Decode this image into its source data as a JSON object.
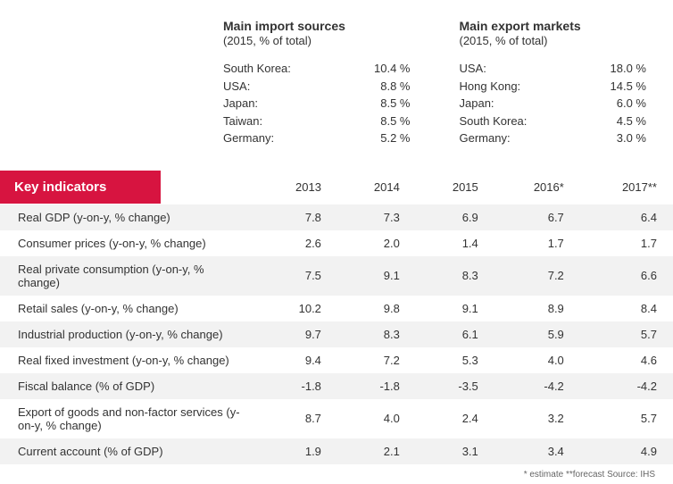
{
  "imports": {
    "title": "Main import sources",
    "subtitle": "(2015, % of total)",
    "rows": [
      {
        "label": "South Korea:",
        "value": "10.4 %"
      },
      {
        "label": "USA:",
        "value": "8.8 %"
      },
      {
        "label": "Japan:",
        "value": "8.5 %"
      },
      {
        "label": "Taiwan:",
        "value": "8.5 %"
      },
      {
        "label": "Germany:",
        "value": "5.2 %"
      }
    ]
  },
  "exports": {
    "title": "Main export markets",
    "subtitle": "(2015, % of total)",
    "rows": [
      {
        "label": "USA:",
        "value": "18.0 %"
      },
      {
        "label": "Hong Kong:",
        "value": "14.5 %"
      },
      {
        "label": "Japan:",
        "value": "6.0 %"
      },
      {
        "label": "South Korea:",
        "value": "4.5 %"
      },
      {
        "label": "Germany:",
        "value": "3.0 %"
      }
    ]
  },
  "table": {
    "badge": "Key indicators",
    "years": [
      "2013",
      "2014",
      "2015",
      "2016*",
      "2017**"
    ],
    "rows": [
      {
        "label": "Real GDP (y-on-y, % change)",
        "vals": [
          "7.8",
          "7.3",
          "6.9",
          "6.7",
          "6.4"
        ]
      },
      {
        "label": "Consumer prices (y-on-y, % change)",
        "vals": [
          "2.6",
          "2.0",
          "1.4",
          "1.7",
          "1.7"
        ]
      },
      {
        "label": "Real private consumption (y-on-y, % change)",
        "vals": [
          "7.5",
          "9.1",
          "8.3",
          "7.2",
          "6.6"
        ]
      },
      {
        "label": "Retail sales (y-on-y, % change)",
        "vals": [
          "10.2",
          "9.8",
          "9.1",
          "8.9",
          "8.4"
        ]
      },
      {
        "label": "Industrial production (y-on-y, % change)",
        "vals": [
          "9.7",
          "8.3",
          "6.1",
          "5.9",
          "5.7"
        ]
      },
      {
        "label": "Real fixed investment (y-on-y, % change)",
        "vals": [
          "9.4",
          "7.2",
          "5.3",
          "4.0",
          "4.6"
        ]
      },
      {
        "label": "Fiscal balance (% of GDP)",
        "vals": [
          "-1.8",
          "-1.8",
          "-3.5",
          "-4.2",
          "-4.2"
        ]
      },
      {
        "label": "Export of goods and non-factor services (y-on-y, % change)",
        "vals": [
          "8.7",
          "4.0",
          "2.4",
          "3.2",
          "5.7"
        ]
      },
      {
        "label": "Current account (% of GDP)",
        "vals": [
          "1.9",
          "2.1",
          "3.1",
          "3.4",
          "4.9"
        ]
      }
    ],
    "footnote": "* estimate   **forecast        Source: IHS",
    "row_even_bg": "#f2f2f2",
    "row_odd_bg": "#ffffff",
    "badge_bg": "#d71440",
    "badge_fg": "#ffffff"
  }
}
